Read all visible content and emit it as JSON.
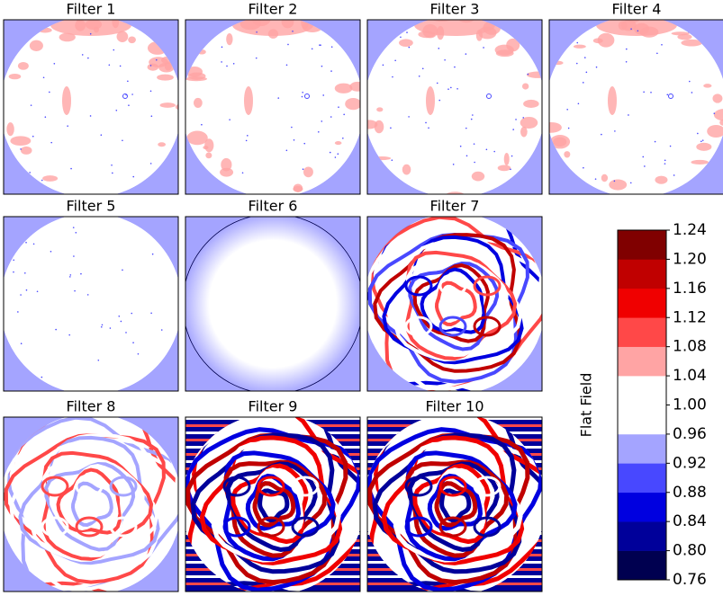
{
  "chart_data": {
    "type": "image-grid",
    "panels": [
      "Filter 1",
      "Filter 2",
      "Filter 3",
      "Filter 4",
      "Filter 5",
      "Filter 6",
      "Filter 7",
      "Filter 8",
      "Filter 9",
      "Filter 10"
    ],
    "colorbar": {
      "label": "Flat Field",
      "ylim": [
        0.76,
        1.24
      ],
      "yticks": [
        0.76,
        {
          "value": 0.8,
          "label": "0.80"
        },
        0.84,
        0.88,
        0.92,
        0.96,
        {
          "value": 1.0,
          "label": "1.00"
        },
        1.04,
        1.08,
        1.12,
        1.16,
        {
          "value": 1.2,
          "label": "1.20"
        },
        1.24
      ],
      "colors": [
        "#000050",
        "#00009a",
        "#0000e0",
        "#4848ff",
        "#a4a4ff",
        "#ffffff",
        "#ffffff",
        "#ffa4a4",
        "#ff4848",
        "#f00000",
        "#c00000",
        "#800000"
      ]
    }
  }
}
